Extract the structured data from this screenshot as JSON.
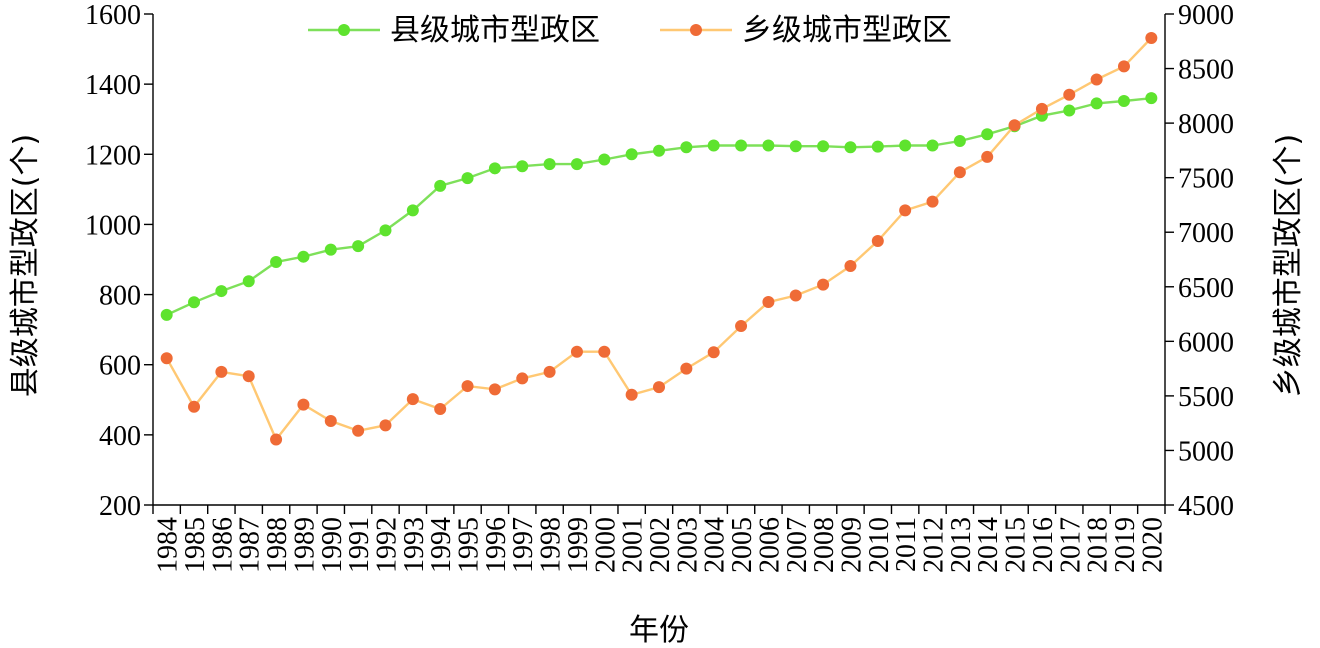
{
  "chart_data": {
    "type": "line",
    "x": [
      "1984",
      "1985",
      "1986",
      "1987",
      "1988",
      "1989",
      "1990",
      "1991",
      "1992",
      "1993",
      "1994",
      "1995",
      "1996",
      "1997",
      "1998",
      "1999",
      "2000",
      "2001",
      "2002",
      "2003",
      "2004",
      "2005",
      "2006",
      "2007",
      "2008",
      "2009",
      "2010",
      "2011",
      "2012",
      "2013",
      "2014",
      "2015",
      "2016",
      "2017",
      "2018",
      "2019",
      "2020"
    ],
    "xlabel": "年份",
    "ylabel_left": "县级城市型政区(个)",
    "ylabel_right": "乡级城市型政区(个)",
    "ylim_left": [
      200,
      1600
    ],
    "ylim_right": [
      4500,
      9000
    ],
    "yticks_left": [
      "200",
      "400",
      "600",
      "800",
      "1000",
      "1200",
      "1400",
      "1600"
    ],
    "yticks_right": [
      "4500",
      "5000",
      "5500",
      "6000",
      "6500",
      "7000",
      "7500",
      "8000",
      "8500",
      "9000"
    ],
    "legend_position": "top",
    "grid": false,
    "series": [
      {
        "name": "县级城市型政区",
        "axis": "left",
        "color": "#5ee32e",
        "line_color": "#7ee05a",
        "values": [
          742,
          778,
          810,
          838,
          893,
          908,
          928,
          938,
          983,
          1040,
          1110,
          1132,
          1160,
          1166,
          1172,
          1172,
          1185,
          1200,
          1210,
          1220,
          1225,
          1225,
          1225,
          1223,
          1223,
          1220,
          1222,
          1225,
          1225,
          1238,
          1257,
          1280,
          1310,
          1325,
          1345,
          1352,
          1360
        ]
      },
      {
        "name": "乡级城市型政区",
        "axis": "right",
        "color": "#ef6b36",
        "line_color": "#ffc873",
        "values": [
          5845,
          5400,
          5720,
          5680,
          5100,
          5420,
          5270,
          5180,
          5230,
          5470,
          5380,
          5590,
          5560,
          5660,
          5720,
          5905,
          5905,
          5510,
          5580,
          5750,
          5900,
          6140,
          6360,
          6420,
          6520,
          6690,
          6920,
          7200,
          7280,
          7550,
          7690,
          7980,
          8130,
          8260,
          8400,
          8520,
          8780
        ]
      }
    ]
  }
}
